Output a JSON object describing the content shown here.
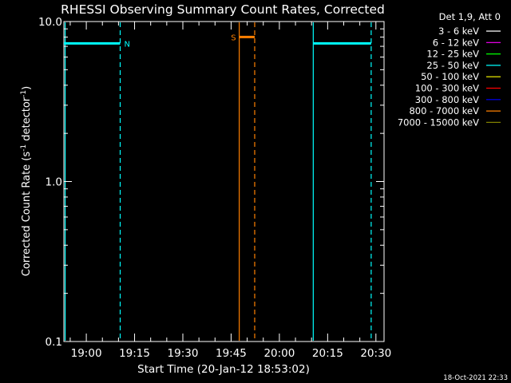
{
  "chart_data": {
    "type": "line",
    "title": "RHESSI Observing Summary Count Rates, Corrected",
    "xlabel": "Start Time (20-Jan-12 18:53:02)",
    "ylabel_main": "Corrected Count Rate (s",
    "ylabel_sup1": "-1",
    "ylabel_mid": " detector",
    "ylabel_sup2": "-1",
    "ylabel_end": ")",
    "yscale": "log",
    "ylim": [
      0.1,
      10.0
    ],
    "x_start": "18:53:02",
    "xlim_minutes": [
      0,
      99.5
    ],
    "xticks": [
      {
        "label": "19:00",
        "minutes": 6.97
      },
      {
        "label": "19:15",
        "minutes": 21.97
      },
      {
        "label": "19:30",
        "minutes": 36.97
      },
      {
        "label": "19:45",
        "minutes": 51.97
      },
      {
        "label": "20:00",
        "minutes": 66.97
      },
      {
        "label": "20:15",
        "minutes": 81.97
      },
      {
        "label": "20:30",
        "minutes": 96.97
      }
    ],
    "yticks": [
      {
        "label": "10.0",
        "value": 10.0
      },
      {
        "label": "1.0",
        "value": 1.0
      },
      {
        "label": "0.1",
        "value": 0.1
      }
    ],
    "legend": {
      "header": "Det 1,9, Att 0",
      "entries": [
        {
          "label": "3 - 6 keV",
          "color": "#ffffff"
        },
        {
          "label": "6 - 12 keV",
          "color": "#ff00ff"
        },
        {
          "label": "12 - 25 keV",
          "color": "#00ff00"
        },
        {
          "label": "25 - 50 keV",
          "color": "#00ffff"
        },
        {
          "label": "50 - 100 keV",
          "color": "#ffff00"
        },
        {
          "label": "100 - 300 keV",
          "color": "#ff0000"
        },
        {
          "label": "300 - 800 keV",
          "color": "#0000ff"
        },
        {
          "label": "800 - 7000 keV",
          "color": "#ff8000"
        },
        {
          "label": "7000 - 15000 keV",
          "color": "#808000"
        }
      ]
    },
    "series": [
      {
        "color": "#00ffff",
        "segments": [
          [
            0,
            7.3,
            17.5,
            7.3
          ],
          [
            77.5,
            7.3,
            95.5,
            7.3
          ]
        ]
      },
      {
        "color": "#ff8000",
        "segments": [
          [
            54.5,
            8.0,
            59.3,
            8.0
          ]
        ]
      }
    ],
    "markers": [
      {
        "label": "N",
        "color": "#00ffff",
        "minutes": 17.5,
        "y": 7.3
      },
      {
        "label": "S",
        "color": "#ff8000",
        "minutes": 54.5,
        "y": 8.0
      }
    ],
    "vlines": [
      {
        "minutes": 0.4,
        "color": "#00ffff",
        "style": "solid"
      },
      {
        "minutes": 17.5,
        "color": "#00ffff",
        "style": "dashed"
      },
      {
        "minutes": 54.5,
        "color": "#ff8000",
        "style": "solid"
      },
      {
        "minutes": 59.3,
        "color": "#ff8000",
        "style": "dashed"
      },
      {
        "minutes": 77.5,
        "color": "#00ffff",
        "style": "solid"
      },
      {
        "minutes": 95.5,
        "color": "#00ffff",
        "style": "dashed"
      }
    ]
  },
  "footer": {
    "timestamp": "18-Oct-2021 22:33"
  }
}
